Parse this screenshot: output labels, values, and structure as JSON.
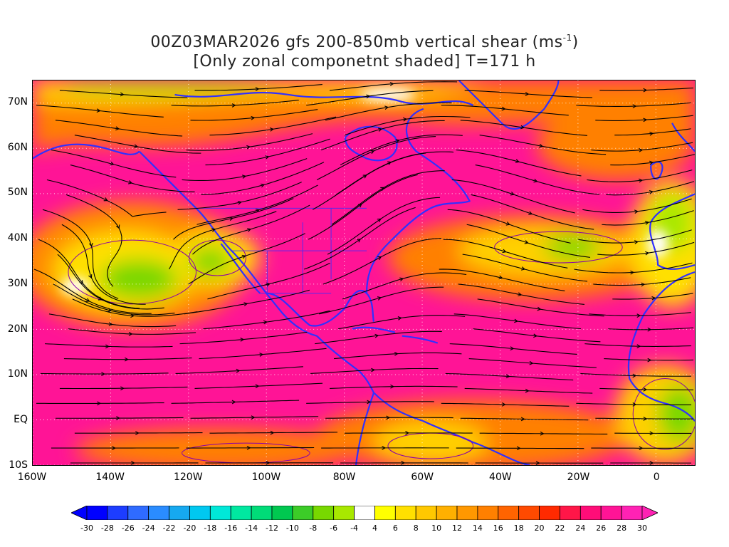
{
  "header": {
    "title_line1_prefix": "00Z03MAR2026 gfs 200-850mb vertical shear (ms",
    "title_line1_sup": "-1",
    "title_line1_suffix": ")",
    "title_line2": "[Only zonal componetnt shaded] T=171 h"
  },
  "axes": {
    "y_ticks": [
      "70N",
      "60N",
      "50N",
      "40N",
      "30N",
      "20N",
      "10N",
      "EQ",
      "10S"
    ],
    "x_ticks": [
      "160W",
      "140W",
      "120W",
      "100W",
      "80W",
      "60W",
      "40W",
      "20W",
      "0"
    ]
  },
  "map_extent": {
    "lon": [
      -160,
      10
    ],
    "lat": [
      -10,
      75
    ]
  },
  "colorbar": {
    "labels": [
      "-30",
      "-28",
      "-26",
      "-24",
      "-22",
      "-20",
      "-18",
      "-16",
      "-14",
      "-12",
      "-10",
      "-8",
      "-6",
      "-4",
      "4",
      "6",
      "8",
      "10",
      "12",
      "14",
      "16",
      "18",
      "20",
      "22",
      "24",
      "26",
      "28",
      "30"
    ],
    "colors": [
      "#0000ff",
      "#1d3dff",
      "#2f6bff",
      "#2a8cff",
      "#16a9f0",
      "#00c8f0",
      "#00e8d8",
      "#00e8a0",
      "#00dc78",
      "#00c850",
      "#3ccc28",
      "#78d800",
      "#a8e800",
      "#ffffff",
      "#ffff00",
      "#ffe000",
      "#ffc800",
      "#ffb000",
      "#ff9800",
      "#ff8000",
      "#ff6400",
      "#ff4a00",
      "#ff2a00",
      "#ff1648",
      "#ff0d78",
      "#ff1496",
      "#ff22b4"
    ]
  },
  "legend_colors": {
    "coastline": "#3030ff",
    "contour": "#8800aa",
    "streamline": "#000000"
  },
  "icons": {
    "colorbar_ends": "triangle-arrow"
  }
}
